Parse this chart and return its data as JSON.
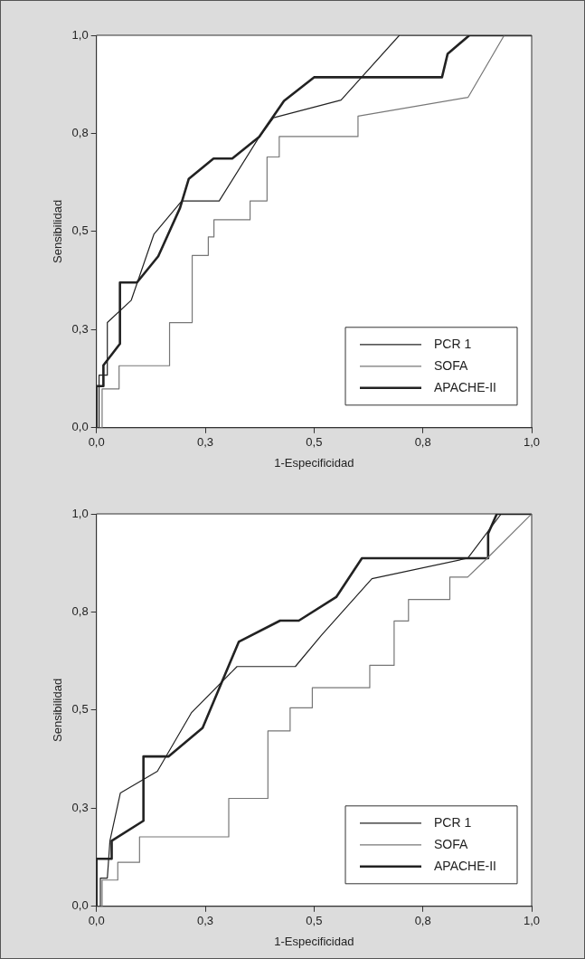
{
  "chart_data": [
    {
      "type": "line",
      "xlabel": "1-Especificidad",
      "ylabel": "Sensibilidad",
      "xlim": [
        0,
        1
      ],
      "ylim": [
        0,
        1
      ],
      "xticks": [
        {
          "value": 0,
          "label": "0,0"
        },
        {
          "value": 0.25,
          "label": "0,3"
        },
        {
          "value": 0.5,
          "label": "0,5"
        },
        {
          "value": 0.75,
          "label": "0,8"
        },
        {
          "value": 1,
          "label": "1,0"
        }
      ],
      "yticks": [
        {
          "value": 0,
          "label": "0,0"
        },
        {
          "value": 0.25,
          "label": "0,3"
        },
        {
          "value": 0.5,
          "label": "0,5"
        },
        {
          "value": 0.75,
          "label": "0,8"
        },
        {
          "value": 1,
          "label": "1,0"
        }
      ],
      "legend": "bottom right",
      "marker": "none",
      "line_style": "solid",
      "grid": false,
      "series": [
        {
          "name": "PCR 1",
          "color": "#222222",
          "x": [
            0,
            0.006,
            0.006,
            0.025,
            0.025,
            0.08,
            0.132,
            0.196,
            0.282,
            0.374,
            0.407,
            0.562,
            0.696,
            1
          ],
          "values": [
            0,
            0,
            0.134,
            0.134,
            0.268,
            0.325,
            0.493,
            0.578,
            0.578,
            0.741,
            0.79,
            0.835,
            1,
            1
          ]
        },
        {
          "name": "SOFA",
          "color": "#777777",
          "x": [
            0,
            0.013,
            0.013,
            0.052,
            0.052,
            0.168,
            0.168,
            0.22,
            0.22,
            0.257,
            0.257,
            0.27,
            0.27,
            0.353,
            0.353,
            0.392,
            0.392,
            0.42,
            0.42,
            0.601,
            0.601,
            0.854,
            0.937,
            1
          ],
          "values": [
            0,
            0,
            0.099,
            0.099,
            0.158,
            0.158,
            0.268,
            0.268,
            0.439,
            0.439,
            0.486,
            0.486,
            0.53,
            0.53,
            0.578,
            0.578,
            0.69,
            0.69,
            0.742,
            0.742,
            0.794,
            0.842,
            1,
            1
          ]
        },
        {
          "name": "APACHE-II",
          "color": "#222222",
          "x": [
            0,
            0,
            0.016,
            0.016,
            0.054,
            0.054,
            0.093,
            0.142,
            0.192,
            0.212,
            0.269,
            0.312,
            0.374,
            0.431,
            0.5,
            0.794,
            0.807,
            0.857,
            1
          ],
          "values": [
            0,
            0.106,
            0.106,
            0.159,
            0.214,
            0.37,
            0.37,
            0.437,
            0.56,
            0.634,
            0.686,
            0.686,
            0.741,
            0.833,
            0.893,
            0.893,
            0.953,
            1,
            1
          ]
        }
      ]
    },
    {
      "type": "line",
      "xlabel": "1-Especificidad",
      "ylabel": "Sensibilidad",
      "xlim": [
        0,
        1
      ],
      "ylim": [
        0,
        1
      ],
      "xticks": [
        {
          "value": 0,
          "label": "0,0"
        },
        {
          "value": 0.25,
          "label": "0,3"
        },
        {
          "value": 0.5,
          "label": "0,5"
        },
        {
          "value": 0.75,
          "label": "0,8"
        },
        {
          "value": 1,
          "label": "1,0"
        }
      ],
      "yticks": [
        {
          "value": 0,
          "label": "0,0"
        },
        {
          "value": 0.25,
          "label": "0,3"
        },
        {
          "value": 0.5,
          "label": "0,5"
        },
        {
          "value": 0.75,
          "label": "0,8"
        },
        {
          "value": 1,
          "label": "1,0"
        }
      ],
      "legend": "bottom right",
      "marker": "none",
      "line_style": "solid",
      "grid": false,
      "series": [
        {
          "name": "PCR 1",
          "color": "#222222",
          "x": [
            0,
            0.009,
            0.009,
            0.025,
            0.031,
            0.055,
            0.14,
            0.218,
            0.323,
            0.457,
            0.517,
            0.633,
            0.853,
            0.93,
            1
          ],
          "values": [
            0,
            0,
            0.072,
            0.072,
            0.167,
            0.289,
            0.344,
            0.493,
            0.611,
            0.611,
            0.691,
            0.835,
            0.887,
            1,
            1
          ]
        },
        {
          "name": "SOFA",
          "color": "#777777",
          "x": [
            0,
            0.013,
            0.013,
            0.049,
            0.049,
            0.099,
            0.099,
            0.304,
            0.304,
            0.394,
            0.394,
            0.445,
            0.445,
            0.496,
            0.496,
            0.628,
            0.628,
            0.684,
            0.684,
            0.717,
            0.717,
            0.812,
            0.812,
            0.853,
            0.898,
            1
          ],
          "values": [
            0,
            0,
            0.067,
            0.067,
            0.112,
            0.112,
            0.177,
            0.177,
            0.275,
            0.275,
            0.447,
            0.447,
            0.506,
            0.506,
            0.557,
            0.557,
            0.614,
            0.614,
            0.727,
            0.727,
            0.782,
            0.782,
            0.839,
            0.839,
            0.887,
            1
          ]
        },
        {
          "name": "APACHE-II",
          "color": "#222222",
          "x": [
            0,
            0,
            0.035,
            0.035,
            0.108,
            0.108,
            0.166,
            0.244,
            0.327,
            0.422,
            0.465,
            0.551,
            0.61,
            0.9,
            0.9,
            0.92,
            1
          ],
          "values": [
            0,
            0.121,
            0.121,
            0.167,
            0.218,
            0.382,
            0.382,
            0.455,
            0.674,
            0.728,
            0.728,
            0.788,
            0.887,
            0.887,
            0.95,
            1,
            1
          ]
        }
      ]
    }
  ]
}
